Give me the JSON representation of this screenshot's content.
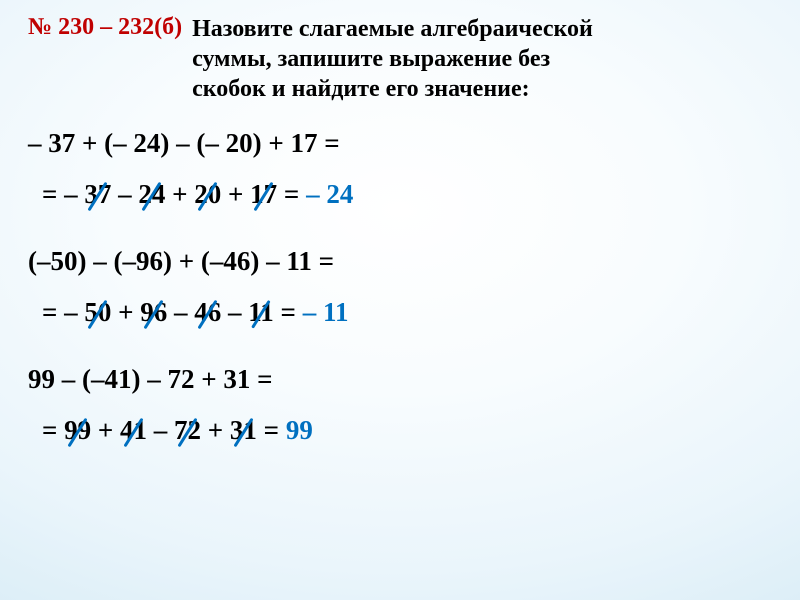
{
  "header": {
    "problem_number": "№ 230 – 232(б)",
    "instruction_l1": "Назовите слагаемые алгебраической",
    "instruction_l2": "суммы, запишите выражение без",
    "instruction_l3": "скобок и найдите его значение:"
  },
  "colors": {
    "red": "#c00000",
    "blue": "#0070c0",
    "black": "#000000",
    "bg_center": "#ffffff",
    "bg_edge": "#b5d9ec"
  },
  "typography": {
    "body_fontsize_pt": 20,
    "header_fontsize_pt": 18,
    "font_family": "Georgia serif",
    "weight": "bold"
  },
  "problems": [
    {
      "given": "– 37 + (– 24) – (– 20) + 17 =",
      "rewrite_prefix": "= ",
      "tokens": [
        {
          "txt": "– ",
          "strike": false
        },
        {
          "txt": "37",
          "strike": true
        },
        {
          "txt": " – ",
          "strike": false
        },
        {
          "txt": "24",
          "strike": true
        },
        {
          "txt": " + ",
          "strike": false
        },
        {
          "txt": "20",
          "strike": true
        },
        {
          "txt": " + ",
          "strike": false
        },
        {
          "txt": "17",
          "strike": true
        }
      ],
      "eq": " = ",
      "answer": "– 24",
      "answer_color": "blue",
      "strike_color": "blue"
    },
    {
      "given": "(–50) – (–96) + (–46) – 11 =",
      "rewrite_prefix": "= ",
      "tokens": [
        {
          "txt": "– ",
          "strike": false
        },
        {
          "txt": "50",
          "strike": true
        },
        {
          "txt": " + ",
          "strike": false
        },
        {
          "txt": "96",
          "strike": true
        },
        {
          "txt": " – ",
          "strike": false
        },
        {
          "txt": "46",
          "strike": true
        },
        {
          "txt": " – ",
          "strike": false
        },
        {
          "txt": "11",
          "strike": true
        }
      ],
      "eq": " = ",
      "answer": "– 11",
      "answer_color": "blue",
      "strike_color": "blue"
    },
    {
      "given": "99 – (–41) – 72 + 31 =",
      "rewrite_prefix": "= ",
      "tokens": [
        {
          "txt": "99",
          "strike": true
        },
        {
          "txt": " + ",
          "strike": false
        },
        {
          "txt": "41",
          "strike": true
        },
        {
          "txt": " – ",
          "strike": false
        },
        {
          "txt": "72",
          "strike": true
        },
        {
          "txt": " + ",
          "strike": false
        },
        {
          "txt": "31",
          "strike": true
        }
      ],
      "eq": " = ",
      "answer": "99",
      "answer_color": "blue",
      "strike_color": "blue"
    }
  ]
}
